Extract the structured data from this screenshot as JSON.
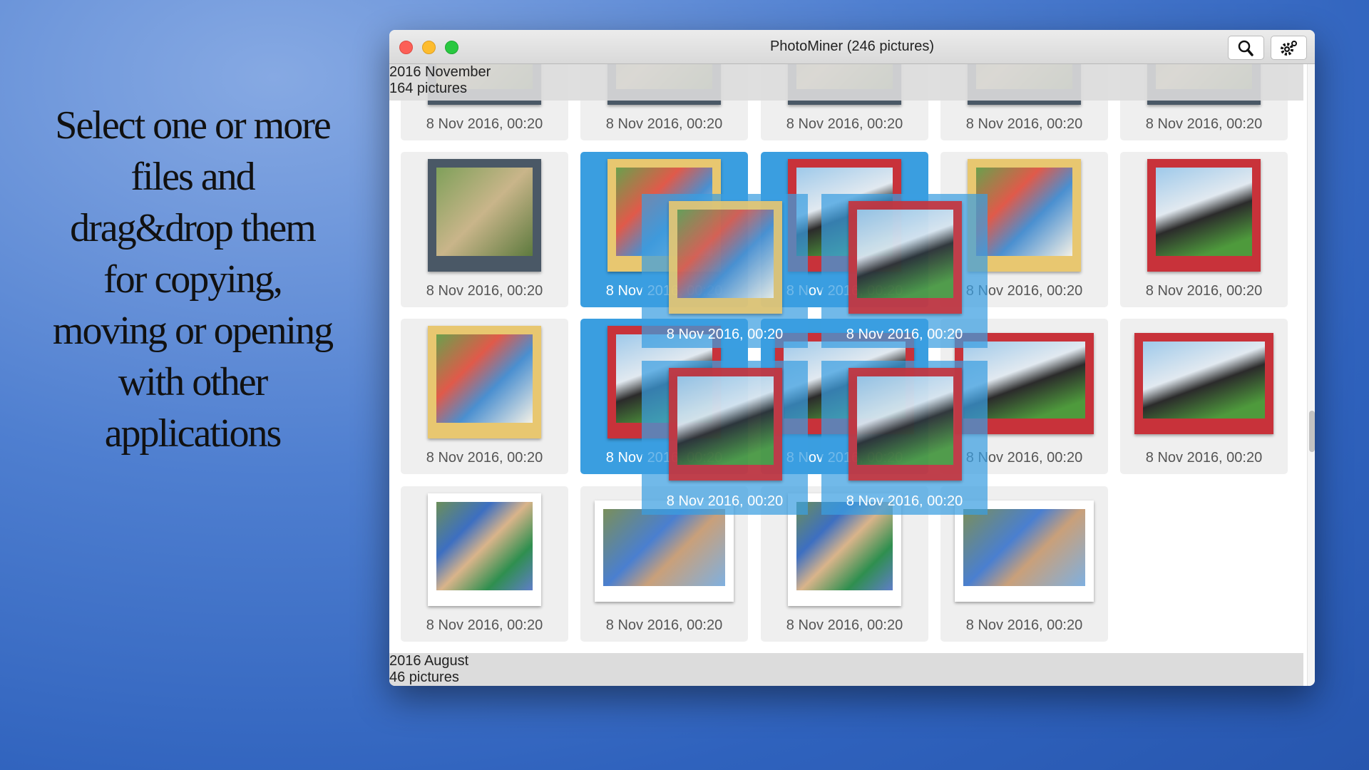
{
  "promo": {
    "lines": [
      "Select one or more",
      "files and",
      "drag&drop them",
      "for copying,",
      "moving or opening",
      "with other",
      "applications"
    ]
  },
  "window": {
    "title": "PhotoMiner (246 pictures)",
    "sections": [
      {
        "name": "2016 November",
        "count": "164 pictures"
      },
      {
        "name": "2016 August",
        "count": "46 pictures"
      }
    ],
    "rows": [
      [
        {
          "date": "8 Nov 2016, 00:20",
          "selected": false
        },
        {
          "date": "8 Nov 2016, 00:20",
          "selected": false
        },
        {
          "date": "8 Nov 2016, 00:20",
          "selected": false
        },
        {
          "date": "8 Nov 2016, 00:20",
          "selected": false
        },
        {
          "date": "8 Nov 2016, 00:20",
          "selected": false
        }
      ],
      [
        {
          "date": "8 Nov 2016, 00:20",
          "selected": false
        },
        {
          "date": "8 Nov 2016, 00:20",
          "selected": true
        },
        {
          "date": "8 Nov 2016, 00:20",
          "selected": true
        },
        {
          "date": "8 Nov 2016, 00:20",
          "selected": false
        },
        {
          "date": "8 Nov 2016, 00:20",
          "selected": false
        }
      ],
      [
        {
          "date": "8 Nov 2016, 00:20",
          "selected": false
        },
        {
          "date": "8 Nov 2016, 00:20",
          "selected": true
        },
        {
          "date": "8 Nov 2016, 00:20",
          "selected": true
        },
        {
          "date": "8 Nov 2016, 00:20",
          "selected": false
        },
        {
          "date": "8 Nov 2016, 00:20",
          "selected": false
        }
      ],
      [
        {
          "date": "8 Nov 2016, 00:20",
          "selected": false
        },
        {
          "date": "8 Nov 2016, 00:20",
          "selected": false
        },
        {
          "date": "8 Nov 2016, 00:20",
          "selected": false
        },
        {
          "date": "8 Nov 2016, 00:20",
          "selected": false
        }
      ]
    ],
    "dragged": [
      {
        "date": "8 Nov 2016, 00:20"
      },
      {
        "date": "8 Nov 2016, 00:20"
      },
      {
        "date": "8 Nov 2016, 00:20"
      },
      {
        "date": "8 Nov 2016, 00:20"
      }
    ]
  }
}
